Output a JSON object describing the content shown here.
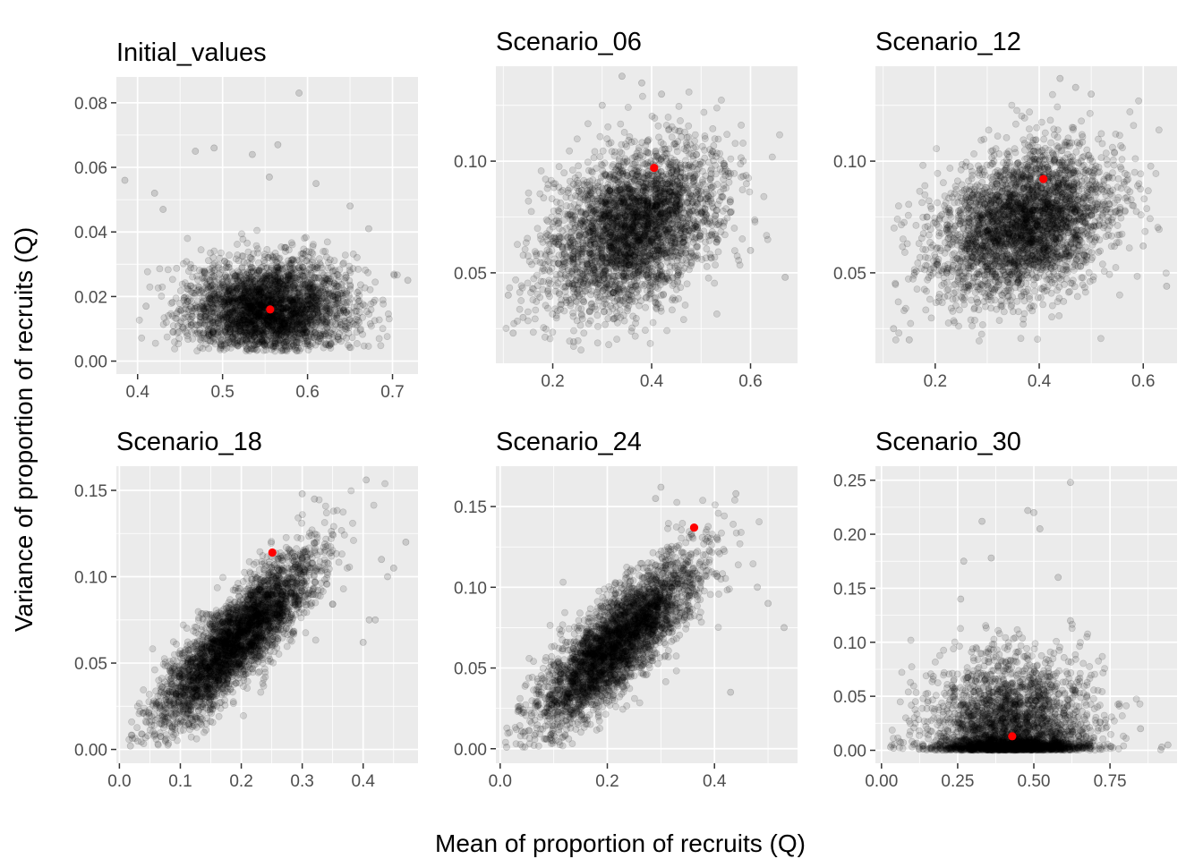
{
  "figure": {
    "xlabel": "Mean of proportion of recruits (Q)",
    "ylabel": "Variance of proportion of recruits (Q)"
  },
  "chart_data": [
    {
      "type": "scatter",
      "title": "Initial_values",
      "xlim": [
        0.375,
        0.73
      ],
      "ylim": [
        -0.004,
        0.088
      ],
      "xticks": [
        0.4,
        0.5,
        0.6,
        0.7
      ],
      "xtick_labels": [
        "0.4",
        "0.5",
        "0.6",
        "0.7"
      ],
      "yticks": [
        0.0,
        0.02,
        0.04,
        0.06,
        0.08
      ],
      "ytick_labels": [
        "0.00",
        "0.02",
        "0.04",
        "0.06",
        "0.08"
      ],
      "grid": true,
      "point_color": "#000000",
      "highlight": {
        "x": 0.556,
        "y": 0.016,
        "color": "#ff0000"
      },
      "cloud": {
        "mx": 0.555,
        "sx": 0.048,
        "my": 0.016,
        "sy": 0.0075,
        "rho": 0.0,
        "n": 3200,
        "xmin": 0.385,
        "xmax": 0.72,
        "ymin": 0.003,
        "ymax": 0.083
      },
      "outliers": [
        [
          0.385,
          0.056
        ],
        [
          0.468,
          0.065
        ],
        [
          0.49,
          0.066
        ],
        [
          0.535,
          0.064
        ],
        [
          0.565,
          0.067
        ],
        [
          0.59,
          0.083
        ],
        [
          0.555,
          0.057
        ],
        [
          0.42,
          0.052
        ],
        [
          0.672,
          0.041
        ],
        [
          0.718,
          0.025
        ],
        [
          0.41,
          0.017
        ],
        [
          0.43,
          0.047
        ],
        [
          0.65,
          0.048
        ],
        [
          0.61,
          0.055
        ]
      ]
    },
    {
      "type": "scatter",
      "title": "Scenario_06",
      "xlim": [
        0.085,
        0.695
      ],
      "ylim": [
        0.0095,
        0.1425
      ],
      "xticks": [
        0.2,
        0.4,
        0.6
      ],
      "xtick_labels": [
        "0.2",
        "0.4",
        "0.6"
      ],
      "yticks": [
        0.05,
        0.1
      ],
      "ytick_labels": [
        "0.05",
        "0.10"
      ],
      "grid": true,
      "point_color": "#000000",
      "highlight": {
        "x": 0.405,
        "y": 0.097,
        "color": "#ff0000"
      },
      "cloud": {
        "mx": 0.36,
        "sx": 0.085,
        "my": 0.07,
        "sy": 0.018,
        "rho": 0.35,
        "n": 3400,
        "xmin": 0.1,
        "xmax": 0.67,
        "ymin": 0.015,
        "ymax": 0.138
      },
      "outliers": [
        [
          0.12,
          0.023
        ],
        [
          0.14,
          0.03
        ],
        [
          0.67,
          0.048
        ],
        [
          0.34,
          0.138
        ],
        [
          0.38,
          0.135
        ],
        [
          0.42,
          0.13
        ],
        [
          0.6,
          0.06
        ],
        [
          0.11,
          0.04
        ],
        [
          0.3,
          0.125
        ]
      ]
    },
    {
      "type": "scatter",
      "title": "Scenario_12",
      "xlim": [
        0.085,
        0.665
      ],
      "ylim": [
        0.0095,
        0.1425
      ],
      "xticks": [
        0.2,
        0.4,
        0.6
      ],
      "xtick_labels": [
        "0.2",
        "0.4",
        "0.6"
      ],
      "yticks": [
        0.05,
        0.1
      ],
      "ytick_labels": [
        "0.05",
        "0.10"
      ],
      "grid": true,
      "point_color": "#000000",
      "highlight": {
        "x": 0.408,
        "y": 0.092,
        "color": "#ff0000"
      },
      "cloud": {
        "mx": 0.37,
        "sx": 0.085,
        "my": 0.072,
        "sy": 0.017,
        "rho": 0.3,
        "n": 3400,
        "xmin": 0.11,
        "xmax": 0.645,
        "ymin": 0.017,
        "ymax": 0.137
      },
      "outliers": [
        [
          0.12,
          0.025
        ],
        [
          0.15,
          0.02
        ],
        [
          0.645,
          0.044
        ],
        [
          0.44,
          0.137
        ],
        [
          0.47,
          0.133
        ],
        [
          0.5,
          0.13
        ],
        [
          0.6,
          0.062
        ],
        [
          0.16,
          0.05
        ]
      ]
    },
    {
      "type": "scatter",
      "title": "Scenario_18",
      "xlim": [
        -0.005,
        0.49
      ],
      "ylim": [
        -0.008,
        0.164
      ],
      "xticks": [
        0.0,
        0.1,
        0.2,
        0.3,
        0.4
      ],
      "xtick_labels": [
        "0.0",
        "0.1",
        "0.2",
        "0.3",
        "0.4"
      ],
      "yticks": [
        0.0,
        0.05,
        0.1,
        0.15
      ],
      "ytick_labels": [
        "0.00",
        "0.05",
        "0.10",
        "0.15"
      ],
      "grid": true,
      "point_color": "#000000",
      "highlight": {
        "x": 0.251,
        "y": 0.114,
        "color": "#ff0000"
      },
      "cloud": {
        "mx": 0.19,
        "sx": 0.065,
        "my": 0.063,
        "sy": 0.025,
        "rho": 0.85,
        "n": 3600,
        "xmin": 0.015,
        "xmax": 0.47,
        "ymin": 0.002,
        "ymax": 0.156
      },
      "outliers": [
        [
          0.018,
          0.002
        ],
        [
          0.405,
          0.156
        ],
        [
          0.47,
          0.12
        ],
        [
          0.44,
          0.1
        ],
        [
          0.42,
          0.075
        ],
        [
          0.4,
          0.062
        ],
        [
          0.3,
          0.148
        ],
        [
          0.32,
          0.145
        ],
        [
          0.43,
          0.11
        ],
        [
          0.45,
          0.105
        ],
        [
          0.41,
          0.075
        ]
      ]
    },
    {
      "type": "scatter",
      "title": "Scenario_24",
      "xlim": [
        -0.008,
        0.555
      ],
      "ylim": [
        -0.009,
        0.175
      ],
      "xticks": [
        0.0,
        0.2,
        0.4
      ],
      "xtick_labels": [
        "0.0",
        "0.2",
        "0.4"
      ],
      "yticks": [
        0.0,
        0.05,
        0.1,
        0.15
      ],
      "ytick_labels": [
        "0.00",
        "0.05",
        "0.10",
        "0.15"
      ],
      "grid": true,
      "point_color": "#000000",
      "highlight": {
        "x": 0.362,
        "y": 0.137,
        "color": "#ff0000"
      },
      "cloud": {
        "mx": 0.22,
        "sx": 0.075,
        "my": 0.066,
        "sy": 0.026,
        "rho": 0.82,
        "n": 3600,
        "xmin": 0.01,
        "xmax": 0.53,
        "ymin": 0.001,
        "ymax": 0.163
      },
      "outliers": [
        [
          0.012,
          0.001
        ],
        [
          0.53,
          0.075
        ],
        [
          0.44,
          0.158
        ],
        [
          0.3,
          0.162
        ],
        [
          0.29,
          0.155
        ],
        [
          0.43,
          0.035
        ],
        [
          0.5,
          0.09
        ],
        [
          0.48,
          0.1
        ]
      ]
    },
    {
      "type": "scatter",
      "title": "Scenario_30",
      "xlim": [
        -0.02,
        0.97
      ],
      "ylim": [
        -0.012,
        0.263
      ],
      "xticks": [
        0.0,
        0.25,
        0.5,
        0.75
      ],
      "xtick_labels": [
        "0.00",
        "0.25",
        "0.50",
        "0.75"
      ],
      "yticks": [
        0.0,
        0.05,
        0.1,
        0.15,
        0.2,
        0.25
      ],
      "ytick_labels": [
        "0.00",
        "0.05",
        "0.10",
        "0.15",
        "0.20",
        "0.25"
      ],
      "grid": true,
      "point_color": "#000000",
      "highlight": {
        "x": 0.429,
        "y": 0.013,
        "color": "#ff0000"
      },
      "cloud": {
        "mx": 0.43,
        "sx": 0.13,
        "my": 0.012,
        "sy": 0.035,
        "rho": 0.0,
        "n": 3200,
        "xmin": 0.03,
        "xmax": 0.94,
        "ymin": 0.0,
        "ymax": 0.25
      },
      "outliers": [
        [
          0.62,
          0.248
        ],
        [
          0.33,
          0.212
        ],
        [
          0.48,
          0.222
        ],
        [
          0.5,
          0.22
        ],
        [
          0.36,
          0.178
        ],
        [
          0.52,
          0.205
        ],
        [
          0.27,
          0.175
        ],
        [
          0.94,
          0.005
        ],
        [
          0.92,
          0.003
        ],
        [
          0.85,
          0.02
        ],
        [
          0.03,
          0.003
        ],
        [
          0.04,
          0.002
        ],
        [
          0.26,
          0.14
        ],
        [
          0.58,
          0.16
        ],
        [
          0.62,
          0.12
        ]
      ]
    }
  ]
}
